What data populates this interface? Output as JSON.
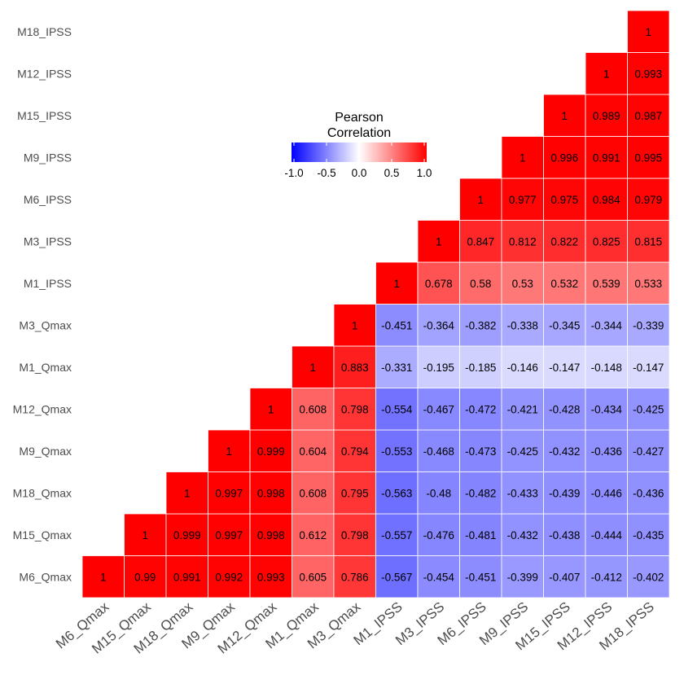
{
  "chart_data": {
    "type": "heatmap",
    "variables": [
      "M6_Qmax",
      "M15_Qmax",
      "M18_Qmax",
      "M9_Qmax",
      "M12_Qmax",
      "M1_Qmax",
      "M3_Qmax",
      "M1_IPSS",
      "M3_IPSS",
      "M6_IPSS",
      "M9_IPSS",
      "M15_IPSS",
      "M12_IPSS",
      "M18_IPSS"
    ],
    "matrix": [
      [
        1,
        0.99,
        0.991,
        0.992,
        0.993,
        0.605,
        0.786,
        -0.567,
        -0.454,
        -0.451,
        -0.399,
        -0.407,
        -0.412,
        -0.402
      ],
      [
        null,
        1,
        0.999,
        0.997,
        0.998,
        0.612,
        0.798,
        -0.557,
        -0.476,
        -0.481,
        -0.432,
        -0.438,
        -0.444,
        -0.435
      ],
      [
        null,
        null,
        1,
        0.997,
        0.998,
        0.608,
        0.795,
        -0.563,
        -0.48,
        -0.482,
        -0.433,
        -0.439,
        -0.446,
        -0.436
      ],
      [
        null,
        null,
        null,
        1,
        0.999,
        0.604,
        0.794,
        -0.553,
        -0.468,
        -0.473,
        -0.425,
        -0.432,
        -0.436,
        -0.427
      ],
      [
        null,
        null,
        null,
        null,
        1,
        0.608,
        0.798,
        -0.554,
        -0.467,
        -0.472,
        -0.421,
        -0.428,
        -0.434,
        -0.425
      ],
      [
        null,
        null,
        null,
        null,
        null,
        1,
        0.883,
        -0.331,
        -0.195,
        -0.185,
        -0.146,
        -0.147,
        -0.148,
        -0.147
      ],
      [
        null,
        null,
        null,
        null,
        null,
        null,
        1,
        -0.451,
        -0.364,
        -0.382,
        -0.338,
        -0.345,
        -0.344,
        -0.339
      ],
      [
        null,
        null,
        null,
        null,
        null,
        null,
        null,
        1,
        0.678,
        0.58,
        0.53,
        0.532,
        0.539,
        0.533
      ],
      [
        null,
        null,
        null,
        null,
        null,
        null,
        null,
        null,
        1,
        0.847,
        0.812,
        0.822,
        0.825,
        0.815
      ],
      [
        null,
        null,
        null,
        null,
        null,
        null,
        null,
        null,
        null,
        1,
        0.977,
        0.975,
        0.984,
        0.979
      ],
      [
        null,
        null,
        null,
        null,
        null,
        null,
        null,
        null,
        null,
        null,
        1,
        0.996,
        0.991,
        0.995
      ],
      [
        null,
        null,
        null,
        null,
        null,
        null,
        null,
        null,
        null,
        null,
        null,
        1,
        0.989,
        0.987
      ],
      [
        null,
        null,
        null,
        null,
        null,
        null,
        null,
        null,
        null,
        null,
        null,
        null,
        1,
        0.993
      ],
      [
        null,
        null,
        null,
        null,
        null,
        null,
        null,
        null,
        null,
        null,
        null,
        null,
        null,
        1
      ]
    ],
    "legend": {
      "title": "Pearson\nCorrelation",
      "ticks": [
        -1.0,
        -0.5,
        0.0,
        0.5,
        1.0
      ],
      "tick_labels": [
        "-1.0",
        "-0.5",
        "0.0",
        "0.5",
        "1.0"
      ],
      "range": [
        -1,
        1
      ],
      "orientation": "horizontal",
      "placement": "top-center"
    },
    "colors": {
      "low": "#0000ff",
      "mid": "#ffffff",
      "high": "#ff0000"
    },
    "grid": false
  }
}
